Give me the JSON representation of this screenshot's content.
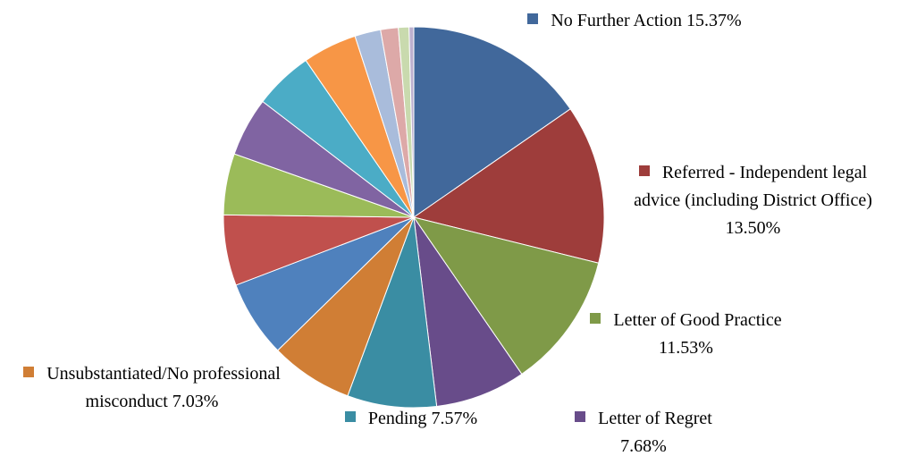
{
  "chart_data": {
    "type": "pie",
    "categories": [
      "No Further Action",
      "Referred - Independent legal advice (including District Office)",
      "Letter of Good Practice",
      "Letter of Regret",
      "Pending",
      "Unsubstantiated/No professional misconduct",
      null,
      null,
      null,
      null,
      null,
      null,
      null,
      null,
      null,
      null
    ],
    "values": [
      15.37,
      13.5,
      11.53,
      7.68,
      7.57,
      7.03,
      6.52,
      6.0,
      5.2,
      5.0,
      5.0,
      4.6,
      2.2,
      1.5,
      0.9,
      0.4
    ],
    "value_labels": [
      "15.37%",
      "13.50%",
      "11.53%",
      "7.68%",
      "7.57%",
      "7.03%",
      null,
      null,
      null,
      null,
      null,
      null,
      null,
      null,
      null,
      null
    ],
    "colors": [
      "#41689b",
      "#9e3d3b",
      "#7f9a48",
      "#684c8a",
      "#3a8da3",
      "#d07e35",
      "#4f81bd",
      "#c0504d",
      "#9bbb59",
      "#8064a2",
      "#4bacc6",
      "#f79646",
      "#a9bcdb",
      "#dda9a8",
      "#c9daae",
      "#bcb0cf"
    ]
  }
}
